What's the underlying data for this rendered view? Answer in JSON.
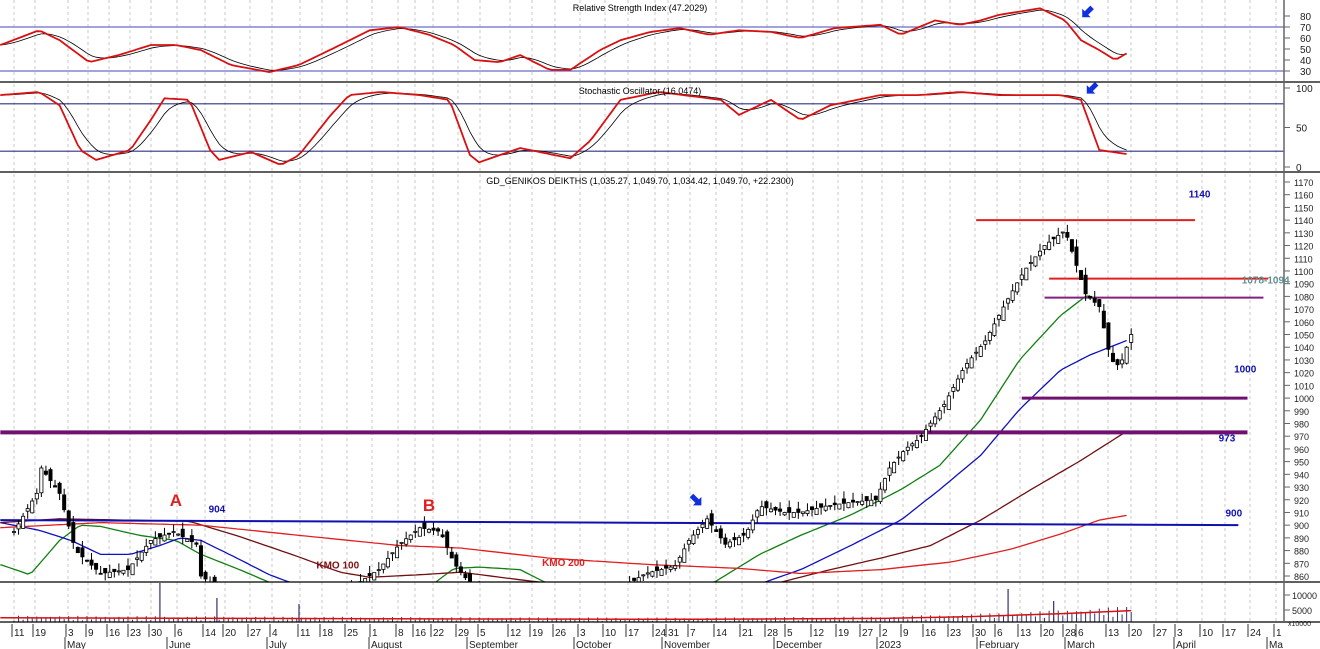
{
  "chart_data": {
    "type": "candlestick",
    "title": "GD_GENIKOS DEIKTHS (1,035.27, 1,049.70, 1,034.42, 1,049.70, +22.2300)",
    "x_unit": "weeks since 11 Apr 2022",
    "last_bar": {
      "open": 1035.27,
      "high": 1049.7,
      "low": 1034.42,
      "close": 1049.7,
      "change": "+22.2300"
    },
    "price_axis": {
      "ylim": [
        855,
        1175
      ],
      "ticks": [
        "1170",
        "1160",
        "1150",
        "1140",
        "1130",
        "1120",
        "1110",
        "1100",
        "1090",
        "1080",
        "1070",
        "1060",
        "1050",
        "1040",
        "1030",
        "1020",
        "1010",
        "1000",
        "990",
        "980",
        "970",
        "960",
        "950",
        "940",
        "930",
        "920",
        "910",
        "900",
        "890",
        "880",
        "870",
        "860"
      ]
    },
    "price_close": [
      [
        0,
        895
      ],
      [
        1.0,
        925
      ],
      [
        1.2,
        945
      ],
      [
        2.0,
        925
      ],
      [
        2.7,
        880
      ],
      [
        3.8,
        862
      ],
      [
        5.0,
        865
      ],
      [
        6.0,
        888
      ],
      [
        7.0,
        895
      ],
      [
        8.0,
        885
      ],
      [
        8.2,
        860
      ],
      [
        9.9,
        840
      ],
      [
        13.9,
        840
      ],
      [
        15.4,
        858
      ],
      [
        16.0,
        865
      ],
      [
        16.9,
        885
      ],
      [
        17.8,
        898
      ],
      [
        18.7,
        895
      ],
      [
        19.3,
        870
      ],
      [
        20.4,
        845
      ],
      [
        25.7,
        840
      ],
      [
        27.7,
        862
      ],
      [
        29.0,
        868
      ],
      [
        29.6,
        888
      ],
      [
        30.4,
        905
      ],
      [
        31.2,
        885
      ],
      [
        32.1,
        893
      ],
      [
        32.7,
        915
      ],
      [
        33.8,
        910
      ],
      [
        34.5,
        910
      ],
      [
        35.6,
        915
      ],
      [
        36.7,
        918
      ],
      [
        37.8,
        920
      ],
      [
        38.4,
        945
      ],
      [
        39.1,
        960
      ],
      [
        39.7,
        968
      ],
      [
        40.8,
        995
      ],
      [
        41.7,
        1025
      ],
      [
        42.6,
        1045
      ],
      [
        43.5,
        1075
      ],
      [
        44.3,
        1100
      ],
      [
        45.2,
        1120
      ],
      [
        46.1,
        1132
      ],
      [
        46.5,
        1110
      ],
      [
        47.0,
        1082
      ],
      [
        47.6,
        1072
      ],
      [
        48.1,
        1030
      ],
      [
        48.5,
        1025
      ],
      [
        49.0,
        1050
      ]
    ],
    "moving_averages": [
      {
        "name": "short MA",
        "color": "#108010",
        "points": [
          [
            -0.6,
            869
          ],
          [
            0.7,
            861
          ],
          [
            2.0,
            888
          ],
          [
            2.9,
            900
          ],
          [
            3.8,
            899
          ],
          [
            5.5,
            892
          ],
          [
            7.1,
            888
          ],
          [
            8.2,
            877
          ],
          [
            9.9,
            865
          ],
          [
            11.2,
            855
          ],
          [
            14,
            830
          ],
          [
            17,
            835
          ],
          [
            19.3,
            866
          ],
          [
            20.4,
            867
          ],
          [
            22.2,
            865
          ],
          [
            23.3,
            855
          ],
          [
            27,
            830
          ],
          [
            30.7,
            855
          ],
          [
            32.7,
            877
          ],
          [
            34.5,
            892
          ],
          [
            36.7,
            908
          ],
          [
            38.9,
            928
          ],
          [
            40.6,
            947
          ],
          [
            42.4,
            983
          ],
          [
            44.1,
            1030
          ],
          [
            45.9,
            1065
          ],
          [
            47.0,
            1080
          ],
          [
            47.4,
            1081
          ]
        ]
      },
      {
        "name": "medium MA",
        "color": "#1010c0",
        "points": [
          [
            -0.6,
            902
          ],
          [
            1.1,
            896
          ],
          [
            2.5,
            888
          ],
          [
            3.8,
            877
          ],
          [
            5.1,
            877
          ],
          [
            6.4,
            884
          ],
          [
            7.3,
            890
          ],
          [
            8.2,
            888
          ],
          [
            9.9,
            873
          ],
          [
            11.2,
            861
          ],
          [
            12.1,
            855
          ],
          [
            20,
            810
          ],
          [
            28,
            820
          ],
          [
            32.9,
            855
          ],
          [
            34.5,
            865
          ],
          [
            36.7,
            884
          ],
          [
            38.9,
            904
          ],
          [
            40.6,
            928
          ],
          [
            42.4,
            955
          ],
          [
            44.1,
            991
          ],
          [
            45.9,
            1022
          ],
          [
            47.2,
            1034
          ],
          [
            48.9,
            1046
          ]
        ]
      },
      {
        "name": "KMO 100",
        "color": "#701010",
        "points": [
          [
            -0.6,
            902
          ],
          [
            2.0,
            905
          ],
          [
            7.7,
            903
          ],
          [
            9.9,
            891
          ],
          [
            12.5,
            875
          ],
          [
            14.3,
            863
          ],
          [
            15.6,
            859
          ],
          [
            17.8,
            861
          ],
          [
            19.6,
            863
          ],
          [
            22.2,
            857
          ],
          [
            28,
            845
          ],
          [
            33.6,
            855
          ],
          [
            35.8,
            865
          ],
          [
            38.0,
            874
          ],
          [
            40.2,
            884
          ],
          [
            42.4,
            904
          ],
          [
            44.6,
            928
          ],
          [
            46.8,
            951
          ],
          [
            48.9,
            975
          ]
        ]
      },
      {
        "name": "KMO 200",
        "color": "#e02020",
        "points": [
          [
            -0.6,
            898
          ],
          [
            3.8,
            902
          ],
          [
            8.2,
            900
          ],
          [
            12.5,
            892
          ],
          [
            16.9,
            884
          ],
          [
            19.6,
            882
          ],
          [
            23.5,
            874
          ],
          [
            27.9,
            869
          ],
          [
            31.8,
            866
          ],
          [
            34.5,
            862
          ],
          [
            38.0,
            865
          ],
          [
            41.1,
            871
          ],
          [
            43.7,
            881
          ],
          [
            45.9,
            893
          ],
          [
            47.6,
            904
          ],
          [
            48.9,
            908
          ]
        ]
      }
    ],
    "levels": [
      {
        "value": 1140,
        "value_end": 1140,
        "color": "#e02020",
        "from": 42.2,
        "to": 51.8,
        "weight": 2
      },
      {
        "value": 1094,
        "value_end": 1094,
        "color": "#e02020",
        "from": 45.4,
        "to": 55.0,
        "weight": 2
      },
      {
        "value": 1079,
        "value_end": 1079,
        "color": "#802080",
        "from": 45.2,
        "to": 54.8,
        "weight": 2
      },
      {
        "value": 1000,
        "value_end": 1000,
        "color": "#701070",
        "from": 44.2,
        "to": 54.1,
        "weight": 3
      },
      {
        "value": 973,
        "value_end": 973,
        "color": "#701070",
        "from": -0.6,
        "to": 54.1,
        "weight": 4
      },
      {
        "value": 904,
        "value_end": 900,
        "color": "#1010b0",
        "from": -0.6,
        "to": 53.7,
        "weight": 2
      }
    ],
    "annotations": [
      {
        "text": "1140",
        "color": "#1010b0",
        "class": "lbl",
        "at": [
          52.0,
          1158
        ]
      },
      {
        "text": "1078-1094",
        "color": "#609090",
        "class": "lbl",
        "at": [
          54.9,
          1090
        ]
      },
      {
        "text": "1000",
        "color": "#1010b0",
        "class": "lbl",
        "at": [
          54.0,
          1020
        ]
      },
      {
        "text": "973",
        "color": "#1010b0",
        "class": "lbl",
        "at": [
          53.2,
          966
        ]
      },
      {
        "text": "900",
        "color": "#1010b0",
        "class": "lbl",
        "at": [
          53.5,
          907
        ]
      },
      {
        "text": "904",
        "color": "#1010b0",
        "class": "lbl",
        "at": [
          8.9,
          910
        ]
      },
      {
        "text": "KMO 100",
        "color": "#801010",
        "class": "lbl",
        "at": [
          14.2,
          866
        ]
      },
      {
        "text": "KMO 200",
        "color": "#e02020",
        "class": "lbl",
        "at": [
          24.1,
          868
        ]
      },
      {
        "text": "A",
        "color": "#e02020",
        "class": "big",
        "at": [
          7.1,
          915
        ]
      },
      {
        "text": "B",
        "color": "#e02020",
        "class": "big",
        "at": [
          18.2,
          911
        ]
      }
    ],
    "arrows": [
      {
        "panel": "price",
        "direction": "down-right",
        "at": [
          29.9,
          920
        ]
      },
      {
        "panel": "rsi",
        "direction": "down-left",
        "at": [
          47.1,
          84
        ]
      },
      {
        "panel": "stochastic",
        "direction": "down-left",
        "at": [
          47.3,
          100
        ]
      }
    ],
    "rsi": {
      "title": "Relative Strength Index (47.2029)",
      "value": 47.2029,
      "ticks": [
        "80",
        "70",
        "60",
        "50",
        "40",
        "30"
      ],
      "bands": [
        70,
        30
      ],
      "points": [
        [
          -0.6,
          53.6
        ],
        [
          1.1,
          67
        ],
        [
          2.0,
          58
        ],
        [
          3.3,
          38
        ],
        [
          4.6,
          44.5
        ],
        [
          6.0,
          53.6
        ],
        [
          7.1,
          53.6
        ],
        [
          8.2,
          49
        ],
        [
          9.5,
          35.5
        ],
        [
          11.2,
          29
        ],
        [
          12.5,
          35.5
        ],
        [
          14.3,
          53.6
        ],
        [
          15.6,
          67
        ],
        [
          16.9,
          70
        ],
        [
          18.2,
          63
        ],
        [
          19.3,
          53.6
        ],
        [
          20.2,
          40
        ],
        [
          21.3,
          38
        ],
        [
          22.2,
          44.5
        ],
        [
          23.5,
          31
        ],
        [
          24.4,
          31
        ],
        [
          25.7,
          49
        ],
        [
          26.6,
          58
        ],
        [
          27.9,
          65.5
        ],
        [
          29.2,
          69
        ],
        [
          30.5,
          63
        ],
        [
          31.8,
          67
        ],
        [
          33.2,
          65.5
        ],
        [
          34.5,
          60
        ],
        [
          36.0,
          69
        ],
        [
          38.0,
          72
        ],
        [
          38.9,
          63
        ],
        [
          40.4,
          76
        ],
        [
          41.5,
          72
        ],
        [
          42.4,
          76
        ],
        [
          43.2,
          81
        ],
        [
          45.0,
          87
        ],
        [
          46.1,
          76
        ],
        [
          46.8,
          58
        ],
        [
          47.6,
          49
        ],
        [
          48.3,
          40
        ],
        [
          48.9,
          47.2
        ]
      ]
    },
    "stochastic": {
      "title": "Stochastic Oscillator (16.0474)",
      "value": 16.0474,
      "ticks": [
        "100",
        "50",
        "0"
      ],
      "bands": [
        80,
        20
      ],
      "points": [
        [
          -0.6,
          91
        ],
        [
          1.1,
          95
        ],
        [
          2.0,
          78
        ],
        [
          2.9,
          21.5
        ],
        [
          3.6,
          9
        ],
        [
          5.1,
          21.5
        ],
        [
          6.0,
          59.5
        ],
        [
          6.6,
          87
        ],
        [
          7.7,
          85
        ],
        [
          8.6,
          21.5
        ],
        [
          9.0,
          9
        ],
        [
          10.4,
          19
        ],
        [
          11.7,
          2.5
        ],
        [
          12.5,
          15
        ],
        [
          13.9,
          66
        ],
        [
          14.7,
          91
        ],
        [
          16.1,
          95
        ],
        [
          17.8,
          91
        ],
        [
          19.1,
          85
        ],
        [
          20.0,
          15
        ],
        [
          20.4,
          6
        ],
        [
          22.2,
          24
        ],
        [
          24.4,
          11
        ],
        [
          25.3,
          34
        ],
        [
          26.6,
          85
        ],
        [
          28.3,
          95
        ],
        [
          31.0,
          85
        ],
        [
          31.8,
          66
        ],
        [
          33.2,
          85
        ],
        [
          34.5,
          59.5
        ],
        [
          35.8,
          78
        ],
        [
          38.0,
          91
        ],
        [
          39.7,
          91
        ],
        [
          41.5,
          95
        ],
        [
          43.2,
          91
        ],
        [
          45.9,
          91
        ],
        [
          46.8,
          85
        ],
        [
          47.6,
          21.5
        ],
        [
          48.9,
          16
        ]
      ]
    },
    "volume": {
      "ticks": [
        "10000",
        "5000"
      ],
      "unit_label": "x10000",
      "ma": [
        [
          -0.6,
          2400
        ],
        [
          10,
          2200
        ],
        [
          20,
          2000
        ],
        [
          30,
          1900
        ],
        [
          38,
          2200
        ],
        [
          42,
          2800
        ],
        [
          46,
          3800
        ],
        [
          49,
          4800
        ]
      ],
      "spikes": [
        [
          6.4,
          14000
        ],
        [
          8.9,
          9000
        ],
        [
          12.5,
          7000
        ],
        [
          43.6,
          12000
        ],
        [
          45.6,
          8000
        ]
      ]
    },
    "x_ticks": [
      "11",
      "19",
      "3",
      "9",
      "16",
      "23",
      "30",
      "6",
      "14",
      "20",
      "27",
      "4",
      "11",
      "18",
      "25",
      "1",
      "8",
      "16",
      "22",
      "29",
      "5",
      "12",
      "19",
      "26",
      "3",
      "10",
      "17",
      "24",
      "31",
      "7",
      "14",
      "21",
      "28",
      "5",
      "12",
      "19",
      "27",
      "2",
      "9",
      "16",
      "23",
      "30",
      "6",
      "13",
      "20",
      "28",
      "6",
      "13",
      "20",
      "27",
      "3",
      "10",
      "17",
      "24",
      "1"
    ],
    "months": [
      "May",
      "June",
      "July",
      "August",
      "September",
      "October",
      "November",
      "December",
      "2023",
      "February",
      "March",
      "April",
      "Ma"
    ]
  }
}
